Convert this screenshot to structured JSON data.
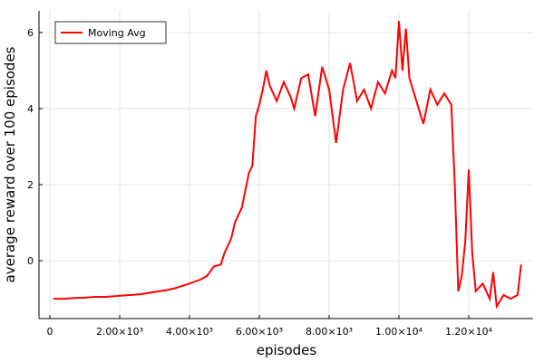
{
  "chart_data": {
    "type": "line",
    "xlabel": "episodes",
    "ylabel": "average reward over 100 episodes",
    "x": [
      100,
      400,
      700,
      1000,
      1300,
      1600,
      2000,
      2300,
      2600,
      3000,
      3300,
      3600,
      4000,
      4300,
      4500,
      4700,
      4900,
      5000,
      5200,
      5300,
      5500,
      5700,
      5800,
      5900,
      6000,
      6100,
      6200,
      6300,
      6500,
      6700,
      6900,
      7000,
      7200,
      7400,
      7600,
      7800,
      8000,
      8200,
      8400,
      8600,
      8800,
      9000,
      9200,
      9400,
      9600,
      9800,
      9900,
      10000,
      10100,
      10200,
      10300,
      10500,
      10700,
      10900,
      11100,
      11300,
      11500,
      11600,
      11700,
      11800,
      11900,
      12000,
      12100,
      12200,
      12400,
      12600,
      12700,
      12800,
      13000,
      13200,
      13400,
      13500
    ],
    "series": [
      {
        "name": "Moving Avg",
        "color": "#ff0000",
        "values": [
          -1.0,
          -1.0,
          -0.98,
          -0.97,
          -0.95,
          -0.95,
          -0.92,
          -0.9,
          -0.88,
          -0.82,
          -0.78,
          -0.72,
          -0.6,
          -0.5,
          -0.4,
          -0.15,
          -0.1,
          0.2,
          0.6,
          1.0,
          1.4,
          2.3,
          2.5,
          3.8,
          4.1,
          4.5,
          5.0,
          4.6,
          4.2,
          4.7,
          4.3,
          4.0,
          4.8,
          4.9,
          3.8,
          5.1,
          4.5,
          3.1,
          4.5,
          5.2,
          4.2,
          4.5,
          4.0,
          4.7,
          4.4,
          5.0,
          4.8,
          6.3,
          5.0,
          6.1,
          4.8,
          4.2,
          3.6,
          4.5,
          4.1,
          4.4,
          4.1,
          2.0,
          -0.8,
          -0.4,
          0.5,
          2.4,
          0.2,
          -0.8,
          -0.6,
          -1.0,
          -0.3,
          -1.2,
          -0.9,
          -1.0,
          -0.9,
          -0.1
        ]
      }
    ],
    "xlim": [
      -312,
      13844
    ],
    "ylim": [
      -1.52,
      6.57
    ],
    "xticks": [
      0,
      {
        "value": 2000,
        "label": "2.00×10³"
      },
      {
        "value": 4000,
        "label": "4.00×10³"
      },
      {
        "value": 6000,
        "label": "6.00×10³"
      },
      {
        "value": 8000,
        "label": "8.00×10³"
      },
      {
        "value": 10000,
        "label": "1.00×10⁴"
      },
      {
        "value": 12000,
        "label": "1.20×10⁴"
      }
    ],
    "yticks": [
      0,
      2,
      4,
      6
    ],
    "grid": true,
    "legend": "upper-left"
  }
}
